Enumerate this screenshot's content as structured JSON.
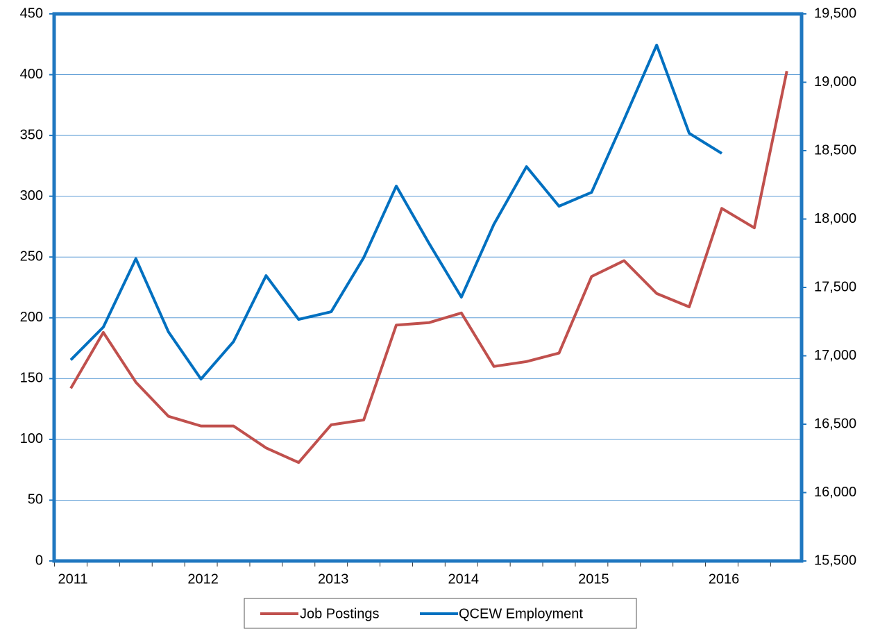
{
  "chart_data": {
    "type": "line",
    "categories": [
      "2011",
      null,
      null,
      null,
      "2012",
      null,
      null,
      null,
      "2013",
      null,
      null,
      null,
      "2014",
      null,
      null,
      null,
      "2015",
      null,
      null,
      null,
      "2016",
      null,
      null
    ],
    "series": [
      {
        "name": "Job Postings",
        "color": "#c0504d",
        "axis": "y",
        "values": [
          142,
          188,
          147,
          119,
          111,
          111,
          93,
          81,
          112,
          116,
          194,
          196,
          204,
          160,
          164,
          171,
          234,
          247,
          220,
          209,
          290,
          274,
          403
        ]
      },
      {
        "name": "QCEW Employment",
        "color": "#0070c0",
        "axis": "y2",
        "values": [
          16970,
          17210,
          17710,
          17175,
          16830,
          17104,
          17586,
          17266,
          17322,
          17718,
          18241,
          17825,
          17429,
          17962,
          18383,
          18094,
          18195,
          18728,
          19272,
          18627,
          18480,
          null,
          null
        ]
      }
    ],
    "ylim": [
      0,
      450
    ],
    "yticks": [
      0,
      50,
      100,
      150,
      200,
      250,
      300,
      350,
      400,
      450
    ],
    "y2lim": [
      15500,
      19500
    ],
    "y2ticks": [
      {
        "value": 15500,
        "label": "15,500"
      },
      {
        "value": 16000,
        "label": "16,000"
      },
      {
        "value": 16500,
        "label": "16,500"
      },
      {
        "value": 17000,
        "label": "17,000"
      },
      {
        "value": 17500,
        "label": "17,500"
      },
      {
        "value": 18000,
        "label": "18,000"
      },
      {
        "value": 18500,
        "label": "18,500"
      },
      {
        "value": 19000,
        "label": "19,000"
      },
      {
        "value": 19500,
        "label": "19,500"
      }
    ],
    "grid": true,
    "legend": "bottom"
  }
}
